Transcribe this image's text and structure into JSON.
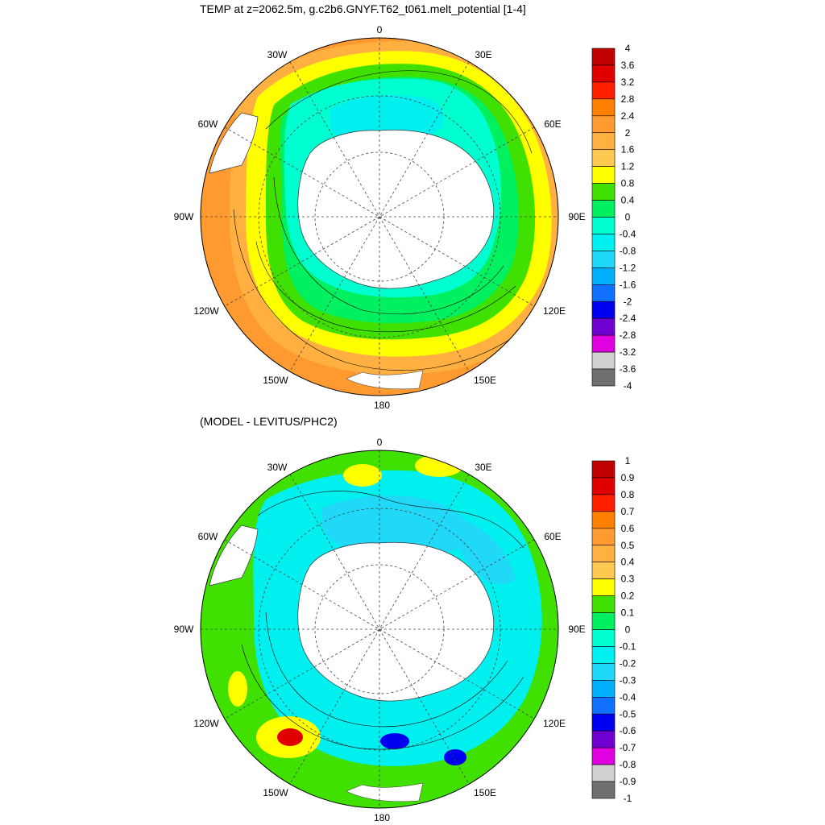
{
  "panel1": {
    "title": "TEMP at z=2062.5m, g.c2b6.GNYF.T62_t061.melt_potential [1-4]",
    "colorbar": {
      "labels": [
        "4",
        "3.6",
        "3.2",
        "2.8",
        "2.4",
        "2",
        "1.6",
        "1.2",
        "0.8",
        "0.4",
        "0",
        "-0.4",
        "-0.8",
        "-1.2",
        "-1.6",
        "-2",
        "-2.4",
        "-2.8",
        "-3.2",
        "-3.6",
        "-4"
      ],
      "colors": [
        "#c00000",
        "#e00000",
        "#ff2000",
        "#ff8000",
        "#ff9a30",
        "#ffb040",
        "#ffc850",
        "#ffff00",
        "#40e000",
        "#00f060",
        "#00ffd0",
        "#00f0f0",
        "#20d8f8",
        "#00b0ff",
        "#1070ff",
        "#0000f0",
        "#7000d0",
        "#e000e0",
        "#d0d0d0",
        "#707070"
      ]
    },
    "field_colors": {
      "warm_outer": "#ff9a30",
      "band_1": "#ffb040",
      "band_2": "#ffff00",
      "band_3": "#40e000",
      "band_4": "#00f060",
      "inner_cold": "#00ffd0",
      "core_cold": "#00f0f0"
    }
  },
  "panel2": {
    "title": "(MODEL - LEVITUS/PHC2)",
    "colorbar": {
      "labels": [
        "1",
        "0.9",
        "0.8",
        "0.7",
        "0.6",
        "0.5",
        "0.4",
        "0.3",
        "0.2",
        "0.1",
        "0",
        "-0.1",
        "-0.2",
        "-0.3",
        "-0.4",
        "-0.5",
        "-0.6",
        "-0.7",
        "-0.8",
        "-0.9",
        "-1"
      ],
      "colors": [
        "#c00000",
        "#e00000",
        "#ff2000",
        "#ff8000",
        "#ff9a30",
        "#ffb040",
        "#ffc850",
        "#ffff00",
        "#40e000",
        "#00f060",
        "#00ffd0",
        "#00f0f0",
        "#20d8f8",
        "#00b0ff",
        "#1070ff",
        "#0000f0",
        "#7000d0",
        "#e000e0",
        "#d0d0d0",
        "#707070"
      ]
    },
    "field_colors": {
      "base": "#40e000",
      "cold": "#00f0f0",
      "colder": "#20d8f8",
      "warm": "#ffff00",
      "hot": "#e00000",
      "very_cold": "#0000f0"
    }
  },
  "map_labels": {
    "n0": "0",
    "w30": "30W",
    "e30": "30E",
    "w60": "60W",
    "e60": "60E",
    "w90": "90W",
    "e90": "90E",
    "w120": "120W",
    "e120": "120E",
    "w150": "150W",
    "e150": "150E",
    "s180": "180"
  }
}
